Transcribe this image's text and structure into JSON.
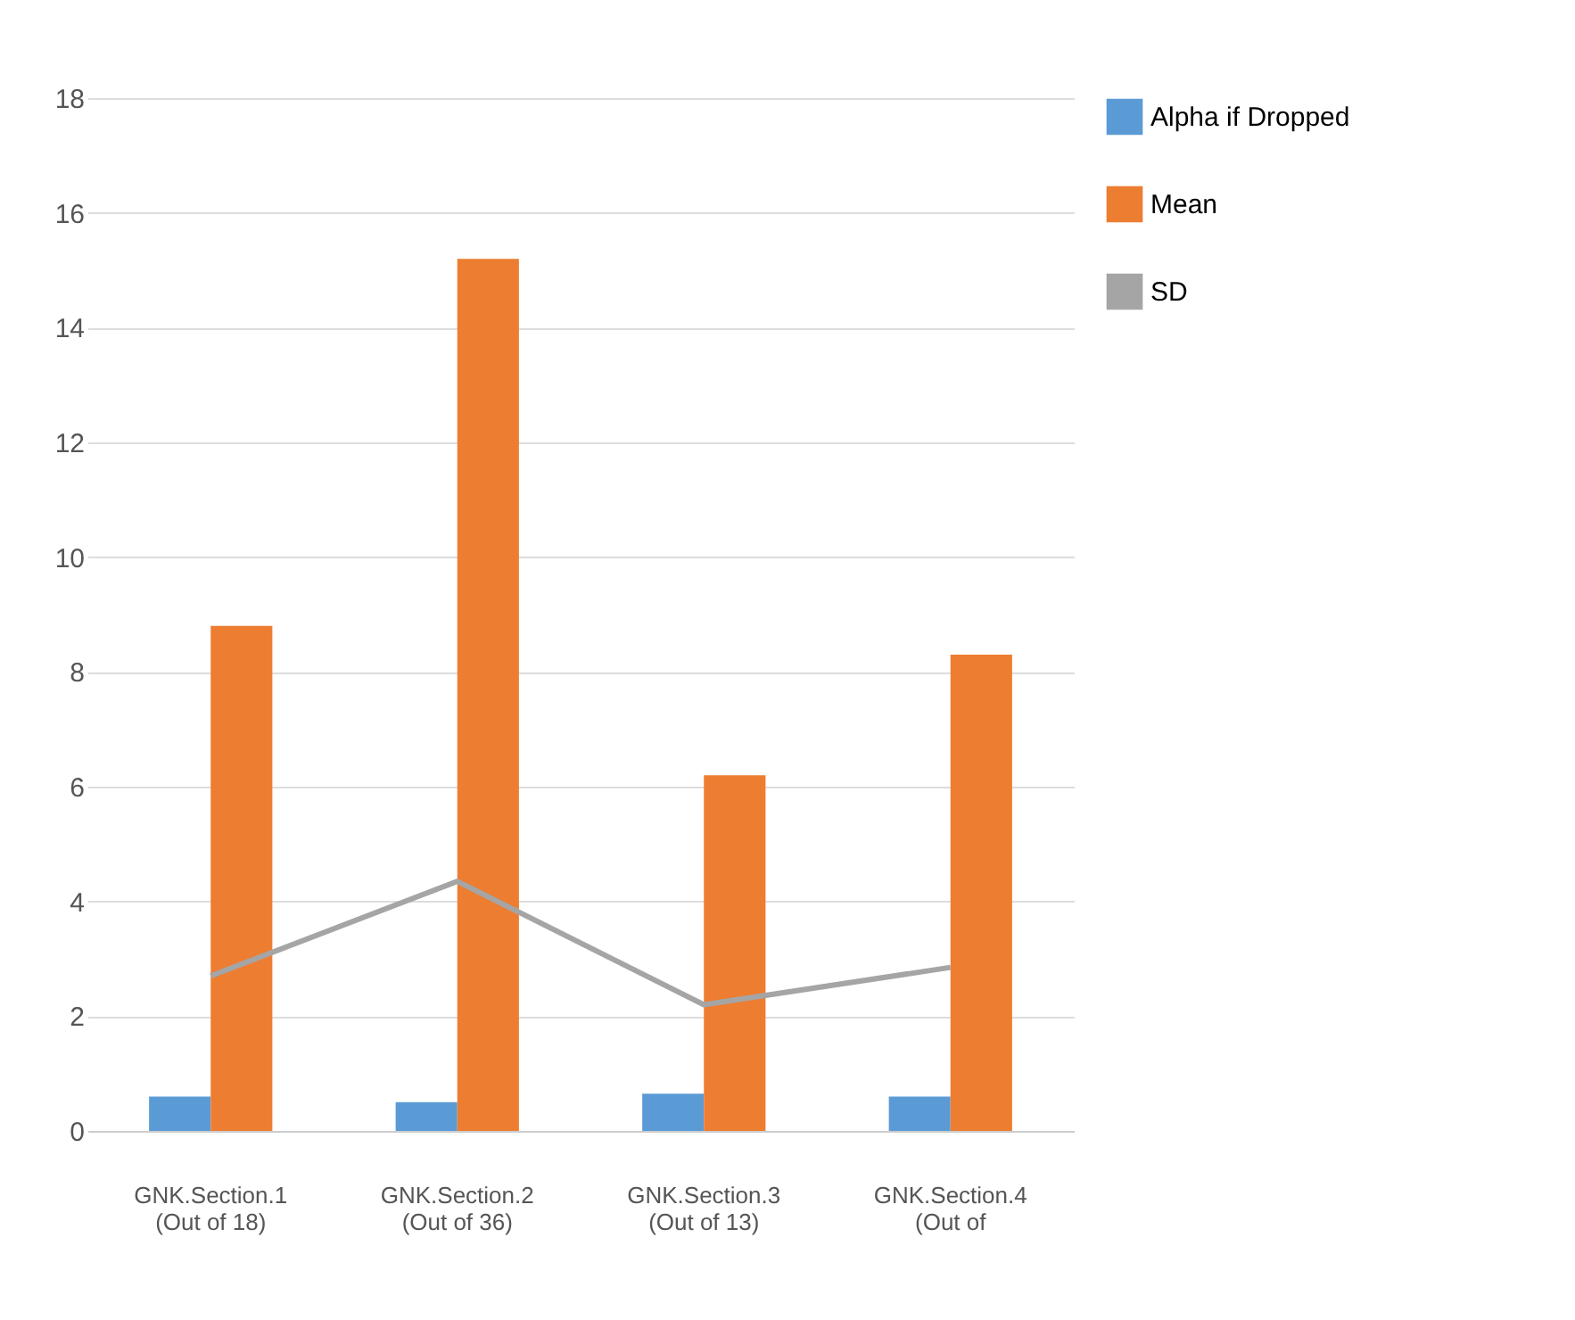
{
  "chart_data": {
    "type": "bar",
    "categories": [
      "GNK.Section.1 (Out of 18)",
      "GNK.Section.2 (Out of 36)",
      "GNK.Section.3 (Out of 13)",
      "GNK.Section.4 (Out of"
    ],
    "series": [
      {
        "name": "Alpha if Dropped",
        "color": "#5b9bd5",
        "values": [
          0.6,
          0.5,
          0.65,
          0.6
        ]
      },
      {
        "name": "Mean",
        "color": "#ed7d31",
        "values": [
          8.8,
          15.2,
          6.2,
          8.3
        ]
      },
      {
        "name": "SD",
        "type": "line",
        "color": "#a5a5a5",
        "values": [
          2.7,
          4.35,
          2.2,
          2.85
        ]
      }
    ],
    "ylim": [
      0,
      18
    ],
    "yticks": [
      0,
      2,
      4,
      6,
      8,
      10,
      12,
      14,
      16,
      18
    ],
    "grid": "y",
    "legend": "right",
    "marker": "none",
    "line_style": "solid"
  }
}
